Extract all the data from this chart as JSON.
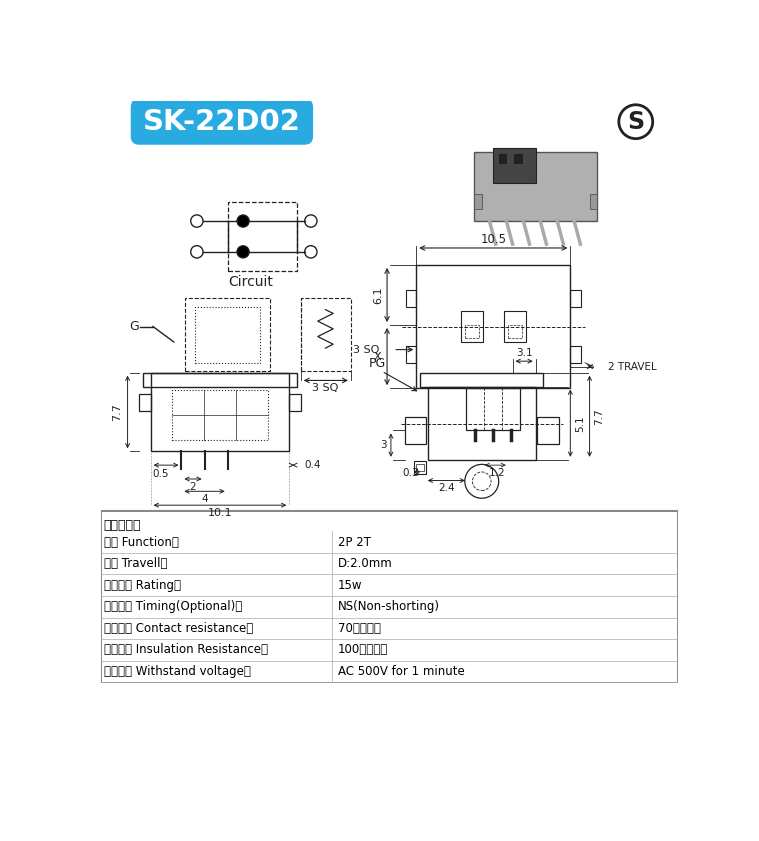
{
  "title": "SK-22D02",
  "title_bg": "#29ABE2",
  "title_text_color": "white",
  "bg_color": "white",
  "spec_header": "产品规格：",
  "specs": [
    [
      "性能 Function：",
      "2P 2T"
    ],
    [
      "行程 Travell：",
      "D:2.0mm"
    ],
    [
      "使用功率 Rating：",
      "15w"
    ],
    [
      "切换类别 Timing(Optional)：",
      "NS(Non-shorting)"
    ],
    [
      "接触电际 Contact resistance：",
      "70毫欧以下"
    ],
    [
      "绝缘电际 Insulation Resistance：",
      "100兆欧以上"
    ],
    [
      "抗抗电压 Withstand voltage：",
      "AC 500V for 1 minute"
    ]
  ],
  "line_color": "#222222",
  "dim_color": "#222222"
}
